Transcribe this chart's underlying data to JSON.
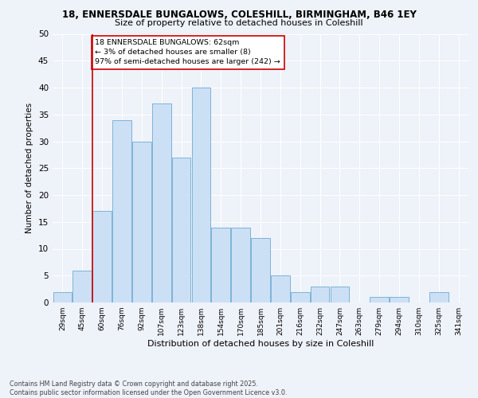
{
  "title_line1": "18, ENNERSDALE BUNGALOWS, COLESHILL, BIRMINGHAM, B46 1EY",
  "title_line2": "Size of property relative to detached houses in Coleshill",
  "xlabel": "Distribution of detached houses by size in Coleshill",
  "ylabel": "Number of detached properties",
  "bins": [
    "29sqm",
    "45sqm",
    "60sqm",
    "76sqm",
    "92sqm",
    "107sqm",
    "123sqm",
    "138sqm",
    "154sqm",
    "170sqm",
    "185sqm",
    "201sqm",
    "216sqm",
    "232sqm",
    "247sqm",
    "263sqm",
    "279sqm",
    "294sqm",
    "310sqm",
    "325sqm",
    "341sqm"
  ],
  "values": [
    2,
    6,
    17,
    34,
    30,
    37,
    27,
    40,
    14,
    14,
    12,
    5,
    2,
    3,
    3,
    0,
    1,
    1,
    0,
    2,
    0
  ],
  "bar_color": "#cce0f5",
  "bar_edge_color": "#7eb3d8",
  "vline_color": "#cc0000",
  "vline_x": 1.5,
  "annotation_text": "18 ENNERSDALE BUNGALOWS: 62sqm\n← 3% of detached houses are smaller (8)\n97% of semi-detached houses are larger (242) →",
  "annotation_box_facecolor": "#ffffff",
  "annotation_box_edgecolor": "#cc0000",
  "ylim": [
    0,
    50
  ],
  "yticks": [
    0,
    5,
    10,
    15,
    20,
    25,
    30,
    35,
    40,
    45,
    50
  ],
  "footer_text": "Contains HM Land Registry data © Crown copyright and database right 2025.\nContains public sector information licensed under the Open Government Licence v3.0.",
  "bg_color": "#eef2f9",
  "grid_color": "#ffffff",
  "title1_fontsize": 8.5,
  "title2_fontsize": 8.0,
  "xlabel_fontsize": 8.0,
  "ylabel_fontsize": 7.5,
  "xtick_fontsize": 6.5,
  "ytick_fontsize": 7.5,
  "annot_fontsize": 6.8,
  "footer_fontsize": 5.8
}
